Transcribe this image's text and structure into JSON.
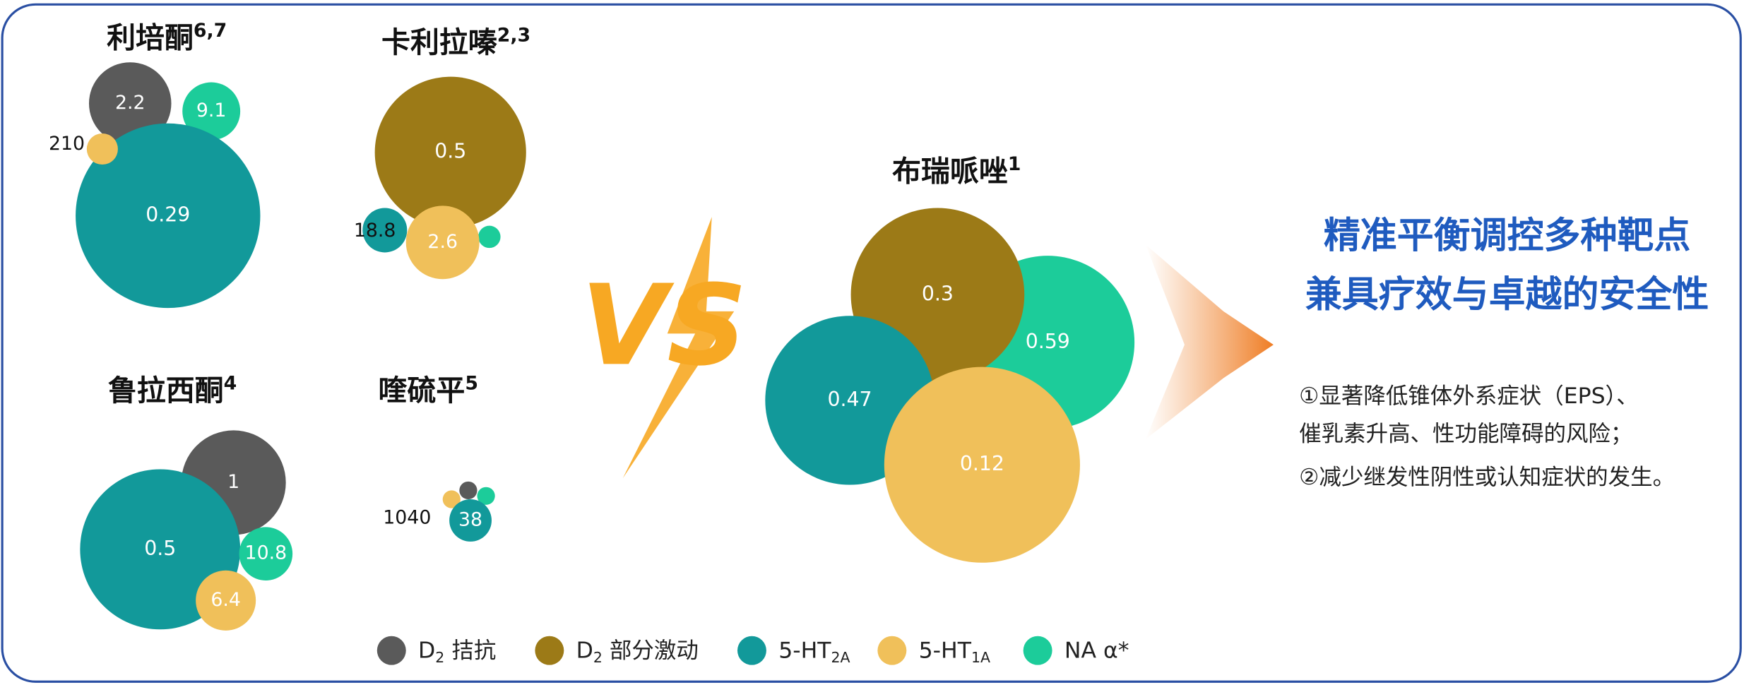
{
  "drugs": [
    {
      "name": "利培酮",
      "sup": "6,7",
      "bubbles": [
        {
          "value": 2.2,
          "color": "#5a5a5a"
        },
        {
          "value": 9.1,
          "color": "#1ccc9a"
        },
        {
          "value": 0.29,
          "color": "#12999a"
        },
        {
          "value": 210,
          "color": "#f0c05a"
        }
      ]
    },
    {
      "name": "卡利拉嗪",
      "sup": "2,3",
      "bubbles": [
        {
          "color": "#1ccc9a"
        },
        {
          "value": 0.5,
          "color": "#9c7a17"
        },
        {
          "value": 18.8,
          "color": "#12999a"
        },
        {
          "value": 2.6,
          "color": "#f0c05a"
        }
      ]
    },
    {
      "name": "鲁拉西酮",
      "sup": "4",
      "bubbles": [
        {
          "value": 1,
          "color": "#5a5a5a"
        },
        {
          "value": 0.5,
          "color": "#12999a"
        },
        {
          "value": 10.8,
          "color": "#1ccc9a"
        },
        {
          "value": 6.4,
          "color": "#f0c05a"
        }
      ]
    },
    {
      "name": "喹硫平",
      "sup": "5",
      "bubbles": [
        {
          "color": "#5a5a5a"
        },
        {
          "color": "#1ccc9a"
        },
        {
          "value": 1040,
          "color": "#f0c05a"
        },
        {
          "value": 38,
          "color": "#12999a"
        }
      ]
    },
    {
      "name": "布瑞哌唑",
      "sup": "1",
      "bubbles": [
        {
          "value": 0.59,
          "color": "#1ccc9a"
        },
        {
          "value": 0.3,
          "color": "#9c7a17"
        },
        {
          "value": 0.47,
          "color": "#12999a"
        },
        {
          "value": 0.12,
          "color": "#f0c05a"
        }
      ]
    }
  ],
  "vs": "VS",
  "headline": [
    "精准平衡调控多种靶点",
    "兼具疗效与卓越的安全性"
  ],
  "points": [
    "①显著降低锥体外系症状（EPS）、",
    "催乳素升高、性功能障碍的风险；",
    "②减少继发性阴性或认知症状的发生。"
  ],
  "legend": [
    {
      "main": "D",
      "sub": "2",
      "rest": " 拮抗",
      "color": "#5a5a5a"
    },
    {
      "main": "D",
      "sub": "2",
      "rest": " 部分激动",
      "color": "#9c7a17"
    },
    {
      "main": "5-HT",
      "sub": "2A",
      "color": "#12999a"
    },
    {
      "main": "5-HT",
      "sub": "1A",
      "color": "#f0c05a"
    },
    {
      "main": "NA α*",
      "color": "#1ccc9a"
    }
  ]
}
